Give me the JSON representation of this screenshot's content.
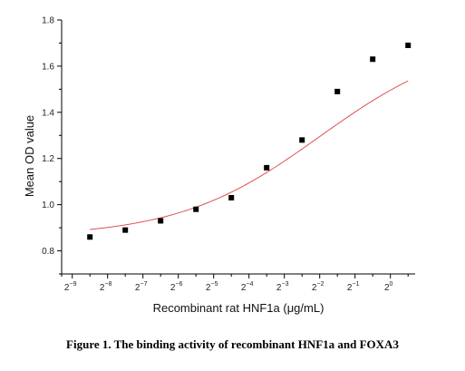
{
  "figure": {
    "caption": "Figure 1. The binding activity of recombinant HNF1a and FOXA3"
  },
  "chart_data": {
    "type": "scatter",
    "xlabel": "Recombinant rat HNF1a (μg/mL)",
    "ylabel": "Mean OD value",
    "xscale": "log2",
    "x_tick_exponents": [
      -9,
      -8,
      -7,
      -6,
      -5,
      -4,
      -3,
      -2,
      -1,
      0
    ],
    "x_tick_base": "2",
    "xlim_log2": [
      -9.3,
      0.7
    ],
    "ylim": [
      0.7,
      1.8
    ],
    "y_ticks": [
      "0.8",
      "1.0",
      "1.2",
      "1.4",
      "1.6",
      "1.8"
    ],
    "y_tick_values": [
      0.8,
      1.0,
      1.2,
      1.4,
      1.6,
      1.8
    ],
    "series": [
      {
        "marker": "square",
        "color": "#000000",
        "x_log2": [
          -8.5,
          -7.5,
          -6.5,
          -5.5,
          -4.5,
          -3.5,
          -2.5,
          -1.5,
          -0.5,
          0.5
        ],
        "y": [
          0.86,
          0.89,
          0.93,
          0.98,
          1.03,
          1.16,
          1.28,
          1.49,
          1.63,
          1.69
        ]
      }
    ],
    "fit": {
      "type": "4PL",
      "color": "#e05050",
      "bottom": 0.86,
      "top": 1.73,
      "inflection_log2": -2.0,
      "slope": 0.72
    },
    "grid": false,
    "legend": "none"
  }
}
